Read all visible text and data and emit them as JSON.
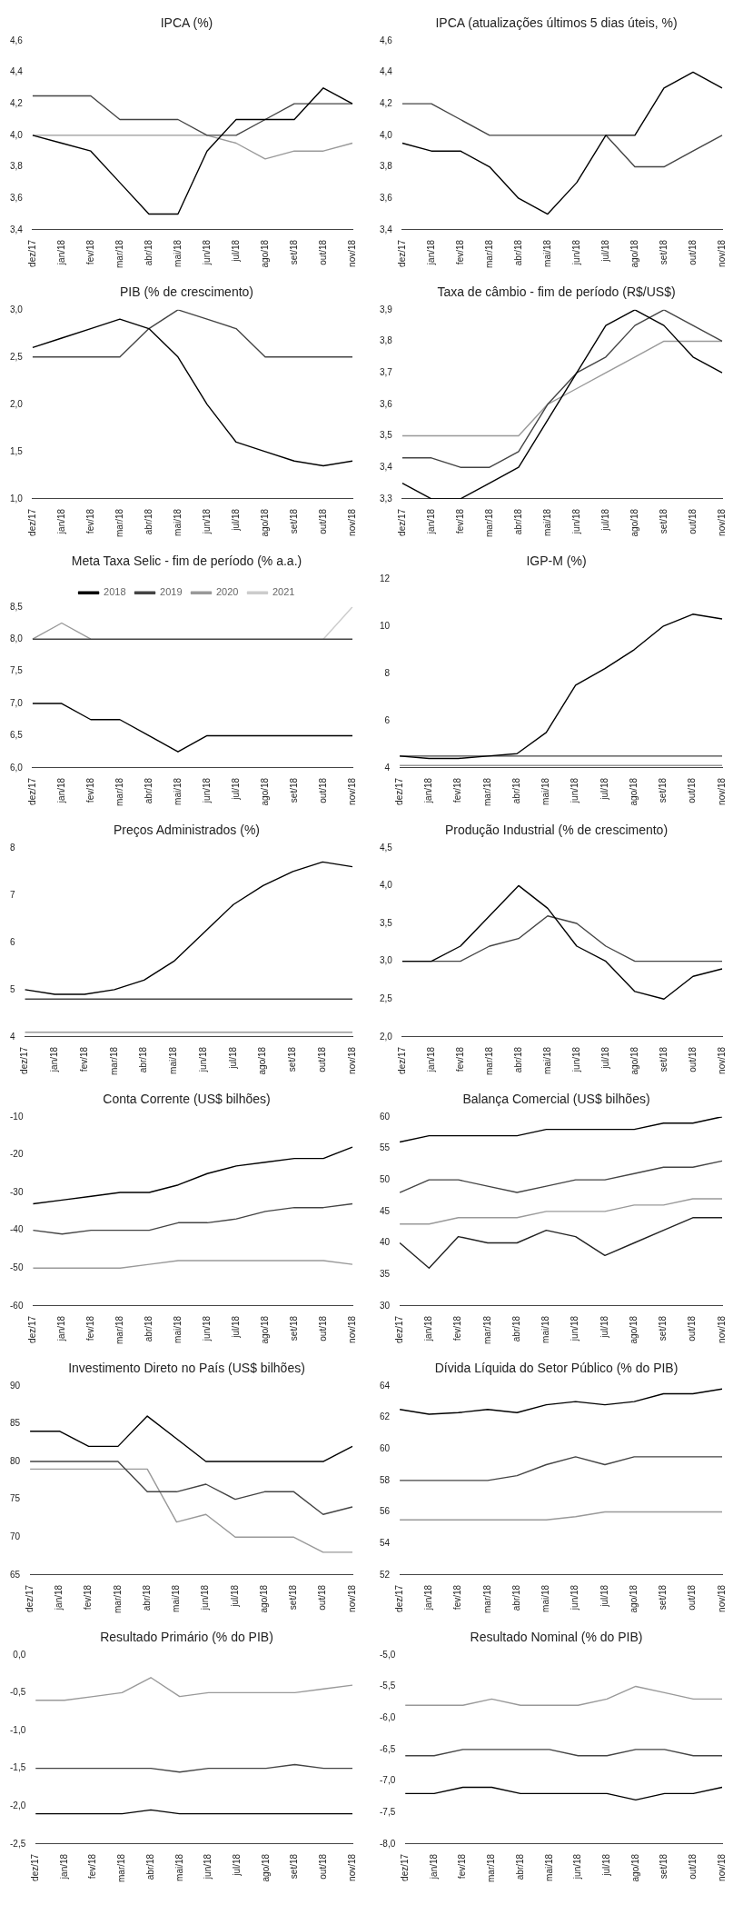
{
  "chart_data": [
    {
      "type": "line",
      "title": "IPCA (%)",
      "categories": [
        "dez/17",
        "jan/18",
        "fev/18",
        "mar/18",
        "abr/18",
        "mai/18",
        "jun/18",
        "jul/18",
        "ago/18",
        "set/18",
        "out/18",
        "nov/18"
      ],
      "marker": "none",
      "ylim": [
        3.4,
        4.6
      ],
      "yticks": [
        {
          "value": 3.4,
          "label": "3,4"
        },
        {
          "value": 3.6,
          "label": "3,6"
        },
        {
          "value": 3.8,
          "label": "3,8"
        },
        {
          "value": 4.0,
          "label": "4,0"
        },
        {
          "value": 4.2,
          "label": "4,2"
        },
        {
          "value": 4.4,
          "label": "4,4"
        },
        {
          "value": 4.6,
          "label": "4,6"
        }
      ],
      "series": [
        {
          "color": "#000000",
          "values": [
            4.0,
            3.95,
            3.9,
            3.7,
            3.5,
            3.5,
            3.9,
            4.1,
            4.1,
            4.1,
            4.3,
            4.2
          ]
        },
        {
          "color": "#444444",
          "values": [
            4.25,
            4.25,
            4.25,
            4.1,
            4.1,
            4.1,
            4.0,
            4.0,
            4.1,
            4.2,
            4.2,
            4.2
          ]
        },
        {
          "color": "#999999",
          "values": [
            4.0,
            4.0,
            4.0,
            4.0,
            4.0,
            4.0,
            4.0,
            3.95,
            3.85,
            3.9,
            3.9,
            3.95
          ]
        }
      ]
    },
    {
      "type": "line",
      "title": "IPCA (atualizações últimos 5 dias úteis, %)",
      "categories": [
        "dez/17",
        "jan/18",
        "fev/18",
        "mar/18",
        "abr/18",
        "mai/18",
        "jun/18",
        "jul/18",
        "ago/18",
        "set/18",
        "out/18",
        "nov/18"
      ],
      "marker": "none",
      "ylim": [
        3.4,
        4.6
      ],
      "yticks": [
        {
          "value": 3.4,
          "label": "3,4"
        },
        {
          "value": 3.6,
          "label": "3,6"
        },
        {
          "value": 3.8,
          "label": "3,8"
        },
        {
          "value": 4.0,
          "label": "4,0"
        },
        {
          "value": 4.2,
          "label": "4,2"
        },
        {
          "value": 4.4,
          "label": "4,4"
        },
        {
          "value": 4.6,
          "label": "4,6"
        }
      ],
      "series": [
        {
          "color": "#000000",
          "values": [
            3.95,
            3.9,
            3.9,
            3.8,
            3.6,
            3.5,
            3.7,
            4.0,
            4.0,
            4.3,
            4.4,
            4.3
          ]
        },
        {
          "color": "#444444",
          "values": [
            4.2,
            4.2,
            4.1,
            4.0,
            4.0,
            4.0,
            4.0,
            4.0,
            3.8,
            3.8,
            3.9,
            4.0
          ]
        }
      ]
    },
    {
      "type": "line",
      "title": "PIB (% de crescimento)",
      "categories": [
        "dez/17",
        "jan/18",
        "fev/18",
        "mar/18",
        "abr/18",
        "mai/18",
        "jun/18",
        "jul/18",
        "ago/18",
        "set/18",
        "out/18",
        "nov/18"
      ],
      "marker": "none",
      "ylim": [
        1.0,
        3.0
      ],
      "yticks": [
        {
          "value": 1.0,
          "label": "1,0"
        },
        {
          "value": 1.5,
          "label": "1,5"
        },
        {
          "value": 2.0,
          "label": "2,0"
        },
        {
          "value": 2.5,
          "label": "2,5"
        },
        {
          "value": 3.0,
          "label": "3,0"
        }
      ],
      "series": [
        {
          "color": "#000000",
          "values": [
            2.6,
            2.7,
            2.8,
            2.9,
            2.8,
            2.5,
            2.0,
            1.6,
            1.5,
            1.4,
            1.35,
            1.4
          ]
        },
        {
          "color": "#444444",
          "values": [
            2.5,
            2.5,
            2.5,
            2.5,
            2.8,
            3.0,
            2.9,
            2.8,
            2.5,
            2.5,
            2.5,
            2.5
          ]
        }
      ]
    },
    {
      "type": "line",
      "title": "Taxa de câmbio - fim de período (R$/US$)",
      "categories": [
        "dez/17",
        "jan/18",
        "fev/18",
        "mar/18",
        "abr/18",
        "mai/18",
        "jun/18",
        "jul/18",
        "ago/18",
        "set/18",
        "out/18",
        "nov/18"
      ],
      "marker": "none",
      "ylim": [
        3.3,
        3.9
      ],
      "yticks": [
        {
          "value": 3.3,
          "label": "3,3"
        },
        {
          "value": 3.4,
          "label": "3,4"
        },
        {
          "value": 3.5,
          "label": "3,5"
        },
        {
          "value": 3.6,
          "label": "3,6"
        },
        {
          "value": 3.7,
          "label": "3,7"
        },
        {
          "value": 3.8,
          "label": "3,8"
        },
        {
          "value": 3.9,
          "label": "3,9"
        }
      ],
      "series": [
        {
          "color": "#000000",
          "values": [
            3.35,
            3.3,
            3.3,
            3.35,
            3.4,
            3.55,
            3.7,
            3.85,
            3.9,
            3.85,
            3.75,
            3.7
          ]
        },
        {
          "color": "#444444",
          "values": [
            3.43,
            3.43,
            3.4,
            3.4,
            3.45,
            3.6,
            3.7,
            3.75,
            3.85,
            3.9,
            3.85,
            3.8
          ]
        },
        {
          "color": "#999999",
          "values": [
            3.5,
            3.5,
            3.5,
            3.5,
            3.5,
            3.6,
            3.65,
            3.7,
            3.75,
            3.8,
            3.8,
            3.8
          ]
        }
      ]
    },
    {
      "type": "line",
      "title": "Meta Taxa Selic - fim de período (% a.a.)",
      "categories": [
        "dez/17",
        "jan/18",
        "fev/18",
        "mar/18",
        "abr/18",
        "mai/18",
        "jun/18",
        "jul/18",
        "ago/18",
        "set/18",
        "out/18",
        "nov/18"
      ],
      "marker": "none",
      "legend": "top",
      "ylim": [
        6.0,
        8.5
      ],
      "yticks": [
        {
          "value": 6.0,
          "label": "6,0"
        },
        {
          "value": 6.5,
          "label": "6,5"
        },
        {
          "value": 7.0,
          "label": "7,0"
        },
        {
          "value": 7.5,
          "label": "7,5"
        },
        {
          "value": 8.0,
          "label": "8,0"
        },
        {
          "value": 8.5,
          "label": "8,5"
        }
      ],
      "series": [
        {
          "name": "2018",
          "color": "#000000",
          "values": [
            7.0,
            7.0,
            6.75,
            6.75,
            6.5,
            6.25,
            6.5,
            6.5,
            6.5,
            6.5,
            6.5,
            6.5
          ]
        },
        {
          "name": "2019",
          "color": "#444444",
          "values": [
            8.0,
            8.0,
            8.0,
            8.0,
            8.0,
            8.0,
            8.0,
            8.0,
            8.0,
            8.0,
            8.0,
            8.0
          ]
        },
        {
          "name": "2020",
          "color": "#999999",
          "values": [
            8.0,
            8.25,
            8.0,
            null,
            null,
            null,
            null,
            null,
            null,
            null,
            null,
            null
          ]
        },
        {
          "name": "2021",
          "color": "#cccccc",
          "values": [
            null,
            null,
            null,
            null,
            null,
            null,
            null,
            null,
            null,
            null,
            8.0,
            8.5
          ]
        }
      ]
    },
    {
      "type": "line",
      "title": "IGP-M (%)",
      "categories": [
        "dez/17",
        "jan/18",
        "fev/18",
        "mar/18",
        "abr/18",
        "mai/18",
        "jun/18",
        "jul/18",
        "ago/18",
        "set/18",
        "out/18",
        "nov/18"
      ],
      "marker": "none",
      "ylim": [
        4,
        12
      ],
      "yticks": [
        4,
        6,
        8,
        10,
        12
      ],
      "series": [
        {
          "color": "#000000",
          "values": [
            4.5,
            4.4,
            4.4,
            4.5,
            4.6,
            5.5,
            7.5,
            8.2,
            9.0,
            10.0,
            10.5,
            10.3
          ]
        },
        {
          "color": "#444444",
          "values": [
            4.5,
            4.5,
            4.5,
            4.5,
            4.5,
            4.5,
            4.5,
            4.5,
            4.5,
            4.5,
            4.5,
            4.5
          ]
        },
        {
          "color": "#999999",
          "values": [
            4.1,
            4.1,
            4.1,
            4.1,
            4.1,
            4.1,
            4.1,
            4.1,
            4.1,
            4.1,
            4.1,
            4.1
          ]
        }
      ]
    },
    {
      "type": "line",
      "title": "Preços Administrados (%)",
      "categories": [
        "dez/17",
        "jan/18",
        "fev/18",
        "mar/18",
        "abr/18",
        "mai/18",
        "jun/18",
        "jul/18",
        "ago/18",
        "set/18",
        "out/18",
        "nov/18"
      ],
      "marker": "none",
      "ylim": [
        4,
        8
      ],
      "yticks": [
        4,
        5,
        6,
        7,
        8
      ],
      "series": [
        {
          "color": "#000000",
          "values": [
            5.0,
            4.9,
            4.9,
            5.0,
            5.2,
            5.6,
            6.2,
            6.8,
            7.2,
            7.5,
            7.7,
            7.6
          ]
        },
        {
          "color": "#444444",
          "values": [
            4.8,
            4.8,
            4.8,
            4.8,
            4.8,
            4.8,
            4.8,
            4.8,
            4.8,
            4.8,
            4.8,
            4.8
          ]
        },
        {
          "color": "#999999",
          "values": [
            4.1,
            4.1,
            4.1,
            4.1,
            4.1,
            4.1,
            4.1,
            4.1,
            4.1,
            4.1,
            4.1,
            4.1
          ]
        }
      ]
    },
    {
      "type": "line",
      "title": "Produção Industrial (% de crescimento)",
      "categories": [
        "dez/17",
        "jan/18",
        "fev/18",
        "mar/18",
        "abr/18",
        "mai/18",
        "jun/18",
        "jul/18",
        "ago/18",
        "set/18",
        "out/18",
        "nov/18"
      ],
      "marker": "none",
      "ylim": [
        2.0,
        4.5
      ],
      "yticks": [
        {
          "value": 2.0,
          "label": "2,0"
        },
        {
          "value": 2.5,
          "label": "2,5"
        },
        {
          "value": 3.0,
          "label": "3,0"
        },
        {
          "value": 3.5,
          "label": "3,5"
        },
        {
          "value": 4.0,
          "label": "4,0"
        },
        {
          "value": 4.5,
          "label": "4,5"
        }
      ],
      "series": [
        {
          "color": "#000000",
          "values": [
            3.0,
            3.0,
            3.2,
            3.6,
            4.0,
            3.7,
            3.2,
            3.0,
            2.6,
            2.5,
            2.8,
            2.9
          ]
        },
        {
          "color": "#444444",
          "values": [
            3.0,
            3.0,
            3.0,
            3.2,
            3.3,
            3.6,
            3.5,
            3.2,
            3.0,
            3.0,
            3.0,
            3.0
          ]
        }
      ]
    },
    {
      "type": "line",
      "title": "Conta Corrente (US$ bilhões)",
      "categories": [
        "dez/17",
        "jan/18",
        "fev/18",
        "mar/18",
        "abr/18",
        "mai/18",
        "jun/18",
        "jul/18",
        "ago/18",
        "set/18",
        "out/18",
        "nov/18"
      ],
      "marker": "none",
      "ylim": [
        -60,
        -10
      ],
      "yticks": [
        -60,
        -50,
        -40,
        -30,
        -20,
        -10
      ],
      "series": [
        {
          "color": "#000000",
          "values": [
            -33,
            -32,
            -31,
            -30,
            -30,
            -28,
            -25,
            -23,
            -22,
            -21,
            -21,
            -18
          ]
        },
        {
          "color": "#444444",
          "values": [
            -40,
            -41,
            -40,
            -40,
            -40,
            -38,
            -38,
            -37,
            -35,
            -34,
            -34,
            -33
          ]
        },
        {
          "color": "#999999",
          "values": [
            -50,
            -50,
            -50,
            -50,
            -49,
            -48,
            -48,
            -48,
            -48,
            -48,
            -48,
            -49
          ]
        }
      ]
    },
    {
      "type": "line",
      "title": "Balança Comercial (US$ bilhões)",
      "categories": [
        "dez/17",
        "jan/18",
        "fev/18",
        "mar/18",
        "abr/18",
        "mai/18",
        "jun/18",
        "jul/18",
        "ago/18",
        "set/18",
        "out/18",
        "nov/18"
      ],
      "marker": "none",
      "ylim": [
        30,
        60
      ],
      "yticks": [
        30,
        35,
        40,
        45,
        50,
        55,
        60
      ],
      "series": [
        {
          "color": "#000000",
          "values": [
            56,
            57,
            57,
            57,
            57,
            58,
            58,
            58,
            58,
            59,
            59,
            60
          ]
        },
        {
          "color": "#444444",
          "values": [
            48,
            50,
            50,
            49,
            48,
            49,
            50,
            50,
            51,
            52,
            52,
            53
          ]
        },
        {
          "color": "#999999",
          "values": [
            43,
            43,
            44,
            44,
            44,
            45,
            45,
            45,
            46,
            46,
            47,
            47
          ]
        },
        {
          "color": "#222222",
          "values": [
            40,
            36,
            41,
            40,
            40,
            42,
            41,
            38,
            40,
            42,
            44,
            44
          ]
        }
      ]
    },
    {
      "type": "line",
      "title": "Investimento Direto no País (US$ bilhões)",
      "categories": [
        "dez/17",
        "jan/18",
        "fev/18",
        "mar/18",
        "abr/18",
        "mai/18",
        "jun/18",
        "jul/18",
        "ago/18",
        "set/18",
        "out/18",
        "nov/18"
      ],
      "marker": "none",
      "ylim": [
        65,
        90
      ],
      "yticks": [
        65,
        70,
        75,
        80,
        85,
        90
      ],
      "series": [
        {
          "color": "#000000",
          "values": [
            84,
            84,
            82,
            82,
            86,
            83,
            80,
            80,
            80,
            80,
            80,
            82
          ]
        },
        {
          "color": "#444444",
          "values": [
            80,
            80,
            80,
            80,
            76,
            76,
            77,
            75,
            76,
            76,
            73,
            74
          ]
        },
        {
          "color": "#999999",
          "values": [
            79,
            79,
            79,
            79,
            79,
            72,
            73,
            70,
            70,
            70,
            68,
            68
          ]
        }
      ]
    },
    {
      "type": "line",
      "title": "Dívida Líquida do Setor Público (% do PIB)",
      "categories": [
        "dez/17",
        "jan/18",
        "fev/18",
        "mar/18",
        "abr/18",
        "mai/18",
        "jun/18",
        "jul/18",
        "ago/18",
        "set/18",
        "out/18",
        "nov/18"
      ],
      "marker": "none",
      "ylim": [
        52,
        64
      ],
      "yticks": [
        52,
        54,
        56,
        58,
        60,
        62,
        64
      ],
      "series": [
        {
          "color": "#000000",
          "values": [
            62.5,
            62.2,
            62.3,
            62.5,
            62.3,
            62.8,
            63,
            62.8,
            63,
            63.5,
            63.5,
            63.8
          ]
        },
        {
          "color": "#444444",
          "values": [
            58,
            58,
            58,
            58,
            58.3,
            59,
            59.5,
            59,
            59.5,
            59.5,
            59.5,
            59.5
          ]
        },
        {
          "color": "#999999",
          "values": [
            55.5,
            55.5,
            55.5,
            55.5,
            55.5,
            55.5,
            55.7,
            56,
            56,
            56,
            56,
            56
          ]
        }
      ]
    },
    {
      "type": "line",
      "title": "Resultado Primário (% do PIB)",
      "categories": [
        "dez/17",
        "jan/18",
        "fev/18",
        "mar/18",
        "abr/18",
        "mai/18",
        "jun/18",
        "jul/18",
        "ago/18",
        "set/18",
        "out/18",
        "nov/18"
      ],
      "marker": "none",
      "ylim": [
        -2.5,
        0.0
      ],
      "yticks": [
        {
          "value": -2.5,
          "label": "-2,5"
        },
        {
          "value": -2.0,
          "label": "-2,0"
        },
        {
          "value": -1.5,
          "label": "-1,5"
        },
        {
          "value": -1.0,
          "label": "-1,0"
        },
        {
          "value": -0.5,
          "label": "-0,5"
        },
        {
          "value": 0.0,
          "label": "0,0"
        }
      ],
      "series": [
        {
          "color": "#000000",
          "values": [
            -2.1,
            -2.1,
            -2.1,
            -2.1,
            -2.05,
            -2.1,
            -2.1,
            -2.1,
            -2.1,
            -2.1,
            -2.1,
            -2.1
          ]
        },
        {
          "color": "#444444",
          "values": [
            -1.5,
            -1.5,
            -1.5,
            -1.5,
            -1.5,
            -1.55,
            -1.5,
            -1.5,
            -1.5,
            -1.45,
            -1.5,
            -1.5
          ]
        },
        {
          "color": "#999999",
          "values": [
            -0.6,
            -0.6,
            -0.55,
            -0.5,
            -0.3,
            -0.55,
            -0.5,
            -0.5,
            -0.5,
            -0.5,
            -0.45,
            -0.4
          ]
        }
      ]
    },
    {
      "type": "line",
      "title": "Resultado Nominal (% do PIB)",
      "categories": [
        "dez/17",
        "jan/18",
        "fev/18",
        "mar/18",
        "abr/18",
        "mai/18",
        "jun/18",
        "jul/18",
        "ago/18",
        "set/18",
        "out/18",
        "nov/18"
      ],
      "marker": "none",
      "ylim": [
        -8.0,
        -5.0
      ],
      "yticks": [
        {
          "value": -8.0,
          "label": "-8,0"
        },
        {
          "value": -7.5,
          "label": "-7,5"
        },
        {
          "value": -7.0,
          "label": "-7,0"
        },
        {
          "value": -6.5,
          "label": "-6,5"
        },
        {
          "value": -6.0,
          "label": "-6,0"
        },
        {
          "value": -5.5,
          "label": "-5,5"
        },
        {
          "value": -5.0,
          "label": "-5,0"
        }
      ],
      "series": [
        {
          "color": "#000000",
          "values": [
            -7.2,
            -7.2,
            -7.1,
            -7.1,
            -7.2,
            -7.2,
            -7.2,
            -7.2,
            -7.3,
            -7.2,
            -7.2,
            -7.1
          ]
        },
        {
          "color": "#444444",
          "values": [
            -6.6,
            -6.6,
            -6.5,
            -6.5,
            -6.5,
            -6.5,
            -6.6,
            -6.6,
            -6.5,
            -6.5,
            -6.6,
            -6.6
          ]
        },
        {
          "color": "#999999",
          "values": [
            -5.8,
            -5.8,
            -5.8,
            -5.7,
            -5.8,
            -5.8,
            -5.8,
            -5.7,
            -5.5,
            -5.6,
            -5.7,
            -5.7
          ]
        }
      ]
    }
  ]
}
